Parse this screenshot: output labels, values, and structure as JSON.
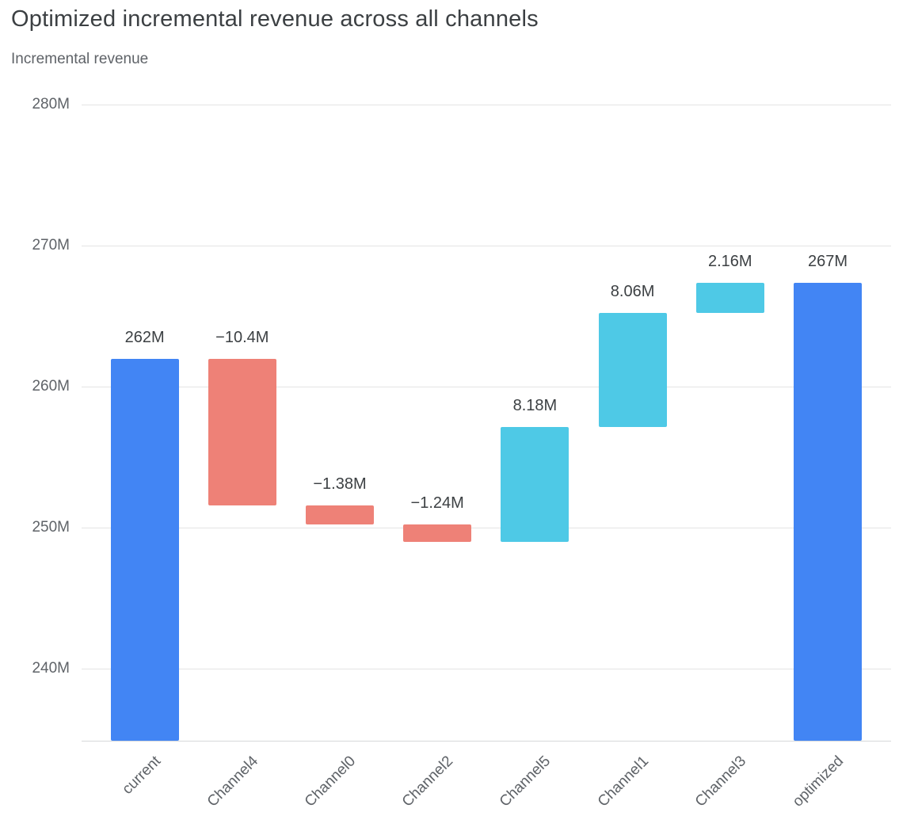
{
  "header": {
    "title": "Optimized incremental revenue across all channels",
    "subtitle": "Incremental revenue"
  },
  "chart_data": {
    "type": "bar",
    "subtype": "waterfall",
    "title": "Optimized incremental revenue across all channels",
    "ylabel": "Incremental revenue",
    "xlabel": "",
    "grid": true,
    "legend": false,
    "categories": [
      "current",
      "Channel4",
      "Channel0",
      "Channel2",
      "Channel5",
      "Channel1",
      "Channel3",
      "optimized"
    ],
    "bars": [
      {
        "category": "current",
        "kind": "total",
        "value": 262,
        "label": "262M",
        "start": 234.9,
        "end": 262
      },
      {
        "category": "Channel4",
        "kind": "decrease",
        "value": -10.4,
        "label": "−10.4M",
        "start": 262,
        "end": 251.6
      },
      {
        "category": "Channel0",
        "kind": "decrease",
        "value": -1.38,
        "label": "−1.38M",
        "start": 251.6,
        "end": 250.22
      },
      {
        "category": "Channel2",
        "kind": "decrease",
        "value": -1.24,
        "label": "−1.24M",
        "start": 250.22,
        "end": 248.98
      },
      {
        "category": "Channel5",
        "kind": "increase",
        "value": 8.18,
        "label": "8.18M",
        "start": 248.98,
        "end": 257.16
      },
      {
        "category": "Channel1",
        "kind": "increase",
        "value": 8.06,
        "label": "8.06M",
        "start": 257.16,
        "end": 265.22
      },
      {
        "category": "Channel3",
        "kind": "increase",
        "value": 2.16,
        "label": "2.16M",
        "start": 265.22,
        "end": 267.38
      },
      {
        "category": "optimized",
        "kind": "total",
        "value": 267,
        "label": "267M",
        "start": 234.9,
        "end": 267.38
      }
    ],
    "axis": {
      "y_min": 234.9,
      "y_max": 282,
      "y_ticks": [
        240,
        250,
        260,
        270,
        280
      ],
      "y_tick_labels": [
        "240M",
        "250M",
        "260M",
        "270M",
        "280M"
      ]
    },
    "colors": {
      "total": "#4285f4",
      "increase": "#4ec9e6",
      "decrease": "#ee8177"
    }
  }
}
